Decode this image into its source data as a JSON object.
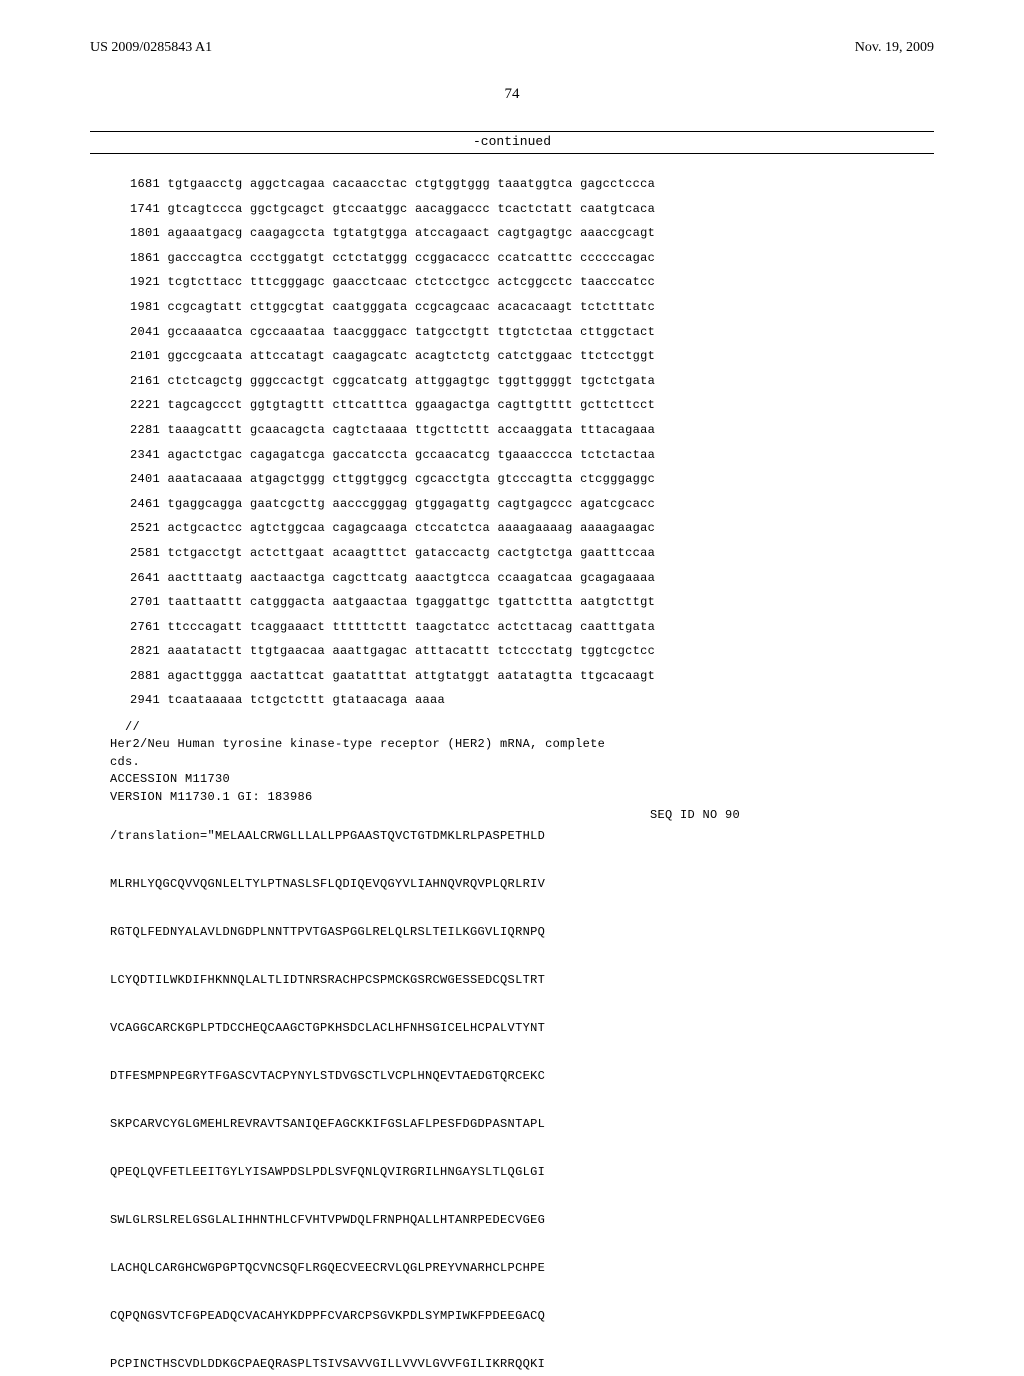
{
  "header": {
    "pub_left": "US 2009/0285843 A1",
    "pub_right": "Nov. 19, 2009",
    "page_number": "74",
    "continued_label": "-continued"
  },
  "sequence_lines": [
    "1681 tgtgaacctg aggctcagaa cacaacctac ctgtggtggg taaatggtca gagcctccca",
    "1741 gtcagtccca ggctgcagct gtccaatggc aacaggaccc tcactctatt caatgtcaca",
    "1801 agaaatgacg caagagccta tgtatgtgga atccagaact cagtgagtgc aaaccgcagt",
    "1861 gacccagtca ccctggatgt cctctatggg ccggacaccc ccatcatttc ccccccagac",
    "1921 tcgtcttacc tttcgggagc gaacctcaac ctctcctgcc actcggcctc taacccatcc",
    "1981 ccgcagtatt cttggcgtat caatgggata ccgcagcaac acacacaagt tctctttatc",
    "2041 gccaaaatca cgccaaataa taacgggacc tatgcctgtt ttgtctctaa cttggctact",
    "2101 ggccgcaata attccatagt caagagcatc acagtctctg catctggaac ttctcctggt",
    "2161 ctctcagctg gggccactgt cggcatcatg attggagtgc tggttggggt tgctctgata",
    "2221 tagcagccct ggtgtagttt cttcatttca ggaagactga cagttgtttt gcttcttcct",
    "2281 taaagcattt gcaacagcta cagtctaaaa ttgcttcttt accaaggata tttacagaaa",
    "2341 agactctgac cagagatcga gaccatccta gccaacatcg tgaaacccca tctctactaa",
    "2401 aaatacaaaa atgagctggg cttggtggcg cgcacctgta gtcccagtta ctcgggaggc",
    "2461 tgaggcagga gaatcgcttg aacccgggag gtggagattg cagtgagccc agatcgcacc",
    "2521 actgcactcc agtctggcaa cagagcaaga ctccatctca aaaagaaaag aaaagaagac",
    "2581 tctgacctgt actcttgaat acaagtttct gataccactg cactgtctga gaatttccaa",
    "2641 aactttaatg aactaactga cagcttcatg aaactgtcca ccaagatcaa gcagagaaaa",
    "2701 taattaattt catgggacta aatgaactaa tgaggattgc tgattcttta aatgtcttgt",
    "2761 ttcccagatt tcaggaaact ttttttcttt taagctatcc actcttacag caatttgata",
    "2821 aaatatactt ttgtgaacaa aaattgagac atttacattt tctccctatg tggtcgctcc",
    "2881 agacttggga aactattcat gaatatttat attgtatggt aatatagtta ttgcacaagt",
    "2941 tcaataaaaa tctgctcttt gtataacaga aaaa"
  ],
  "divider": "  //",
  "annotation": {
    "line1": "Her2/Neu Human tyrosine kinase-type receptor (HER2) mRNA, complete",
    "line2": "cds.",
    "line3": "ACCESSION M11730",
    "line4": "VERSION M11730.1 GI: 183986",
    "seq_id": "SEQ ID NO 90",
    "translation_line": "/translation=\"MELAALCRWGLLLALLPPGAASTQVCTGTDMKLRLPASPETHLD"
  },
  "protein_lines": [
    "MLRHLYQGCQVVQGNLELTYLPTNASLSFLQDIQEVQGYVLIAHNQVRQVPLQRLRIV",
    "RGTQLFEDNYALAVLDNGDPLNNTTPVTGASPGGLRELQLRSLTEILKGGVLIQRNPQ",
    "LCYQDTILWKDIFHKNNQLALTLIDTNRSRACHPCSPMCKGSRCWGESSEDCQSLTRT",
    "VCAGGCARCKGPLPTDCCHEQCAAGCTGPKHSDCLACLHFNHSGICELHCPALVTYNT",
    "DTFESMPNPEGRYTFGASCVTACPYNYLSTDVGSCTLVCPLHNQEVTAEDGTQRCEKC",
    "SKPCARVCYGLGMEHLREVRAVTSANIQEFAGCKKIFGSLAFLPESFDGDPASNTAPL",
    "QPEQLQVFETLEEITGYLYISAWPDSLPDLSVFQNLQVIRGRILHNGAYSLTLQGLGI",
    "SWLGLRSLRELGSGLALIHHNTHLCFVHTVPWDQLFRNPHQALLHTANRPEDECVGEG",
    "LACHQLCARGHCWGPGPTQCVNCSQFLRGQECVEECRVLQGLPREYVNARHCLPCHPE",
    "CQPQNGSVTCFGPEADQCVACAHYKDPPFCVARCPSGVKPDLSYMPIWKFPDEEGACQ",
    "PCPINCTHSCVDLDDKGCPAEQRASPLTSIVSAVVGILLVVVLGVVFGILIKRRQQKI"
  ]
}
